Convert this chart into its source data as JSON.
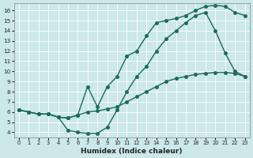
{
  "xlabel": "Humidex (Indice chaleur)",
  "bg_color": "#cce8e8",
  "line_color": "#1a6b5a",
  "xlim": [
    -0.5,
    23.5
  ],
  "ylim": [
    3.5,
    16.7
  ],
  "xticks": [
    0,
    1,
    2,
    3,
    4,
    5,
    6,
    7,
    8,
    9,
    10,
    11,
    12,
    13,
    14,
    15,
    16,
    17,
    18,
    19,
    20,
    21,
    22,
    23
  ],
  "yticks": [
    4,
    5,
    6,
    7,
    8,
    9,
    10,
    11,
    12,
    13,
    14,
    15,
    16
  ],
  "line1_x": [
    0,
    1,
    2,
    3,
    4,
    5,
    6,
    7,
    8,
    9,
    10,
    11,
    12,
    13,
    14,
    15,
    16,
    17,
    18,
    19,
    20,
    21,
    22,
    23
  ],
  "line1_y": [
    6.2,
    6.0,
    5.8,
    5.8,
    5.5,
    5.4,
    5.7,
    6.0,
    6.1,
    6.3,
    6.5,
    7.0,
    7.5,
    8.0,
    8.5,
    9.0,
    9.3,
    9.5,
    9.7,
    9.8,
    9.9,
    9.9,
    9.8,
    9.5
  ],
  "line2_x": [
    0,
    2,
    3,
    4,
    5,
    6,
    7,
    8,
    9,
    10,
    11,
    12,
    13,
    14,
    15,
    16,
    17,
    18,
    19,
    20,
    21,
    22,
    23
  ],
  "line2_y": [
    6.2,
    5.8,
    5.8,
    5.5,
    4.2,
    4.0,
    3.9,
    3.9,
    4.5,
    6.2,
    8.0,
    9.5,
    10.5,
    12.0,
    13.2,
    14.0,
    14.8,
    15.5,
    15.8,
    14.0,
    11.8,
    10.0,
    9.5
  ],
  "line3_x": [
    0,
    1,
    2,
    3,
    4,
    5,
    6,
    7,
    8,
    9,
    10,
    11,
    12,
    13,
    14,
    15,
    16,
    17,
    18,
    19,
    20,
    21,
    22,
    23
  ],
  "line3_y": [
    6.2,
    6.0,
    5.8,
    5.8,
    5.5,
    5.4,
    5.7,
    8.5,
    6.5,
    8.5,
    9.5,
    11.5,
    12.0,
    13.5,
    14.8,
    15.0,
    15.2,
    15.5,
    16.0,
    16.4,
    16.5,
    16.4,
    15.8,
    15.5
  ],
  "marker_size": 2.5,
  "line_width": 1.0
}
